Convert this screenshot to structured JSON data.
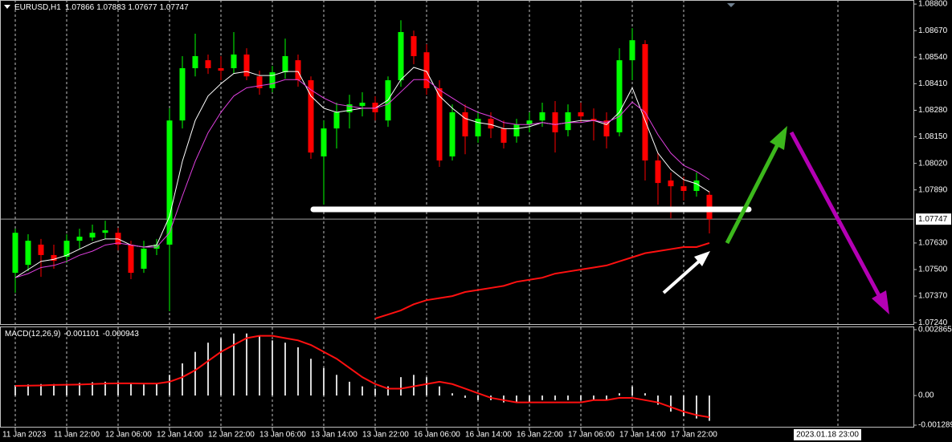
{
  "chart_data": {
    "type": "candlestick",
    "title": "EURUSD,H1",
    "readout": [
      1.07866,
      1.07883,
      1.07677,
      1.07747
    ],
    "categories": [
      "11 Jan 2023",
      null,
      null,
      null,
      "11 Jan 22:00",
      null,
      null,
      null,
      "12 Jan 06:00",
      null,
      null,
      null,
      "12 Jan 14:00",
      null,
      null,
      null,
      "12 Jan 22:00",
      null,
      null,
      null,
      "13 Jan 06:00",
      null,
      null,
      null,
      "13 Jan 14:00",
      null,
      null,
      null,
      "13 Jan 22:00",
      null,
      null,
      null,
      "16 Jan 06:00",
      null,
      null,
      null,
      "16 Jan 14:00",
      null,
      null,
      null,
      "16 Jan 22:00",
      null,
      null,
      null,
      "17 Jan 06:00",
      null,
      null,
      null,
      "17 Jan 14:00",
      null,
      null,
      null,
      "17 Jan 22:00",
      null,
      null
    ],
    "candles": [
      [
        1.07484,
        1.077,
        1.07386,
        1.0768
      ],
      [
        1.07523,
        1.07673,
        1.07492,
        1.07641
      ],
      [
        1.07622,
        1.0765,
        1.07464,
        1.07571
      ],
      [
        1.07571,
        1.07622,
        1.07504,
        1.07543
      ],
      [
        1.07563,
        1.07673,
        1.07531,
        1.07641
      ],
      [
        1.07641,
        1.077,
        1.07602,
        1.07661
      ],
      [
        1.07657,
        1.0772,
        1.07641,
        1.0768
      ],
      [
        1.0768,
        1.07739,
        1.0765,
        1.07692
      ],
      [
        1.0768,
        1.07704,
        1.07594,
        1.07622
      ],
      [
        1.07622,
        1.07641,
        1.07453,
        1.07484
      ],
      [
        1.07504,
        1.07641,
        1.07484,
        1.07602
      ],
      [
        1.07602,
        1.0765,
        1.07571,
        1.07622
      ],
      [
        1.07622,
        1.08289,
        1.07296,
        1.0823
      ],
      [
        1.0823,
        1.08545,
        1.08191,
        1.08486
      ],
      [
        1.08486,
        1.08655,
        1.08446,
        1.08545
      ],
      [
        1.08525,
        1.08553,
        1.08458,
        1.08486
      ],
      [
        1.08486,
        1.08545,
        1.08427,
        1.08474
      ],
      [
        1.08486,
        1.08663,
        1.08458,
        1.08553
      ],
      [
        1.08553,
        1.08584,
        1.08427,
        1.08446
      ],
      [
        1.08446,
        1.08474,
        1.08356,
        1.08388
      ],
      [
        1.08388,
        1.08497,
        1.08368,
        1.08466
      ],
      [
        1.08466,
        1.08631,
        1.08435,
        1.08545
      ],
      [
        1.08525,
        1.08553,
        1.08395,
        1.08427
      ],
      [
        1.08427,
        1.08446,
        1.08042,
        1.08073
      ],
      [
        1.08054,
        1.0823,
        1.07818,
        1.08191
      ],
      [
        1.08191,
        1.08317,
        1.08093,
        1.0827
      ],
      [
        1.0827,
        1.08356,
        1.08191,
        1.08309
      ],
      [
        1.08301,
        1.08368,
        1.0825,
        1.08317
      ],
      [
        1.08317,
        1.08348,
        1.0823,
        1.0827
      ],
      [
        1.0823,
        1.08446,
        1.08199,
        1.08427
      ],
      [
        1.08427,
        1.08721,
        1.08395,
        1.08663
      ],
      [
        1.08643,
        1.0867,
        1.08505,
        1.08545
      ],
      [
        1.08564,
        1.08604,
        1.08356,
        1.08388
      ],
      [
        1.08388,
        1.08427,
        1.08003,
        1.08034
      ],
      [
        1.08054,
        1.08309,
        1.08034,
        1.0827
      ],
      [
        1.0827,
        1.08309,
        1.08065,
        1.08152
      ],
      [
        1.08152,
        1.08278,
        1.08121,
        1.08238
      ],
      [
        1.08238,
        1.0827,
        1.08144,
        1.08191
      ],
      [
        1.08191,
        1.0823,
        1.08093,
        1.08121
      ],
      [
        1.08152,
        1.08238,
        1.08121,
        1.08211
      ],
      [
        1.08211,
        1.0827,
        1.08172,
        1.0823
      ],
      [
        1.0823,
        1.08317,
        1.08199,
        1.0827
      ],
      [
        1.0827,
        1.08325,
        1.08073,
        1.08172
      ],
      [
        1.08183,
        1.08309,
        1.08152,
        1.0827
      ],
      [
        1.0827,
        1.08317,
        1.08222,
        1.0825
      ],
      [
        1.08238,
        1.08289,
        1.08132,
        1.0823
      ],
      [
        1.0823,
        1.0827,
        1.08093,
        1.08152
      ],
      [
        1.08172,
        1.08584,
        1.08152,
        1.08525
      ],
      [
        1.08525,
        1.08682,
        1.08427,
        1.08623
      ],
      [
        1.08604,
        1.08623,
        1.07936,
        1.08034
      ],
      [
        1.08034,
        1.08073,
        1.07818,
        1.07924
      ],
      [
        1.07936,
        1.07975,
        1.07751,
        1.07908
      ],
      [
        1.07908,
        1.07955,
        1.07838,
        1.07885
      ],
      [
        1.07885,
        1.07975,
        1.07857,
        1.07936
      ],
      [
        1.07866,
        1.07883,
        1.07677,
        1.07747
      ]
    ],
    "up_color": "#00ff00",
    "down_color": "#ff0000",
    "lines": [
      {
        "color": "#ffffff",
        "values": [
          1.0746,
          1.075,
          1.0754,
          1.0755,
          1.0757,
          1.076,
          1.0763,
          1.0765,
          1.0765,
          1.0762,
          1.0761,
          1.0762,
          1.0776,
          1.0803,
          1.0823,
          1.0835,
          1.0841,
          1.0846,
          1.0847,
          1.0845,
          1.0845,
          1.0847,
          1.0847,
          1.0835,
          1.0829,
          1.0827,
          1.0828,
          1.0829,
          1.0829,
          1.0833,
          1.0843,
          1.0849,
          1.0847,
          1.0835,
          1.0829,
          1.0824,
          1.0822,
          1.0821,
          1.0819,
          1.0819,
          1.082,
          1.0822,
          1.0821,
          1.0822,
          1.0823,
          1.0823,
          1.0821,
          1.0827,
          1.0839,
          1.0823,
          1.0807,
          1.0799,
          1.0794,
          1.0792,
          1.0788
        ]
      },
      {
        "color": "#e040e0",
        "values": [
          1.0746,
          1.0748,
          1.0751,
          1.0752,
          1.0754,
          1.0757,
          1.0759,
          1.0762,
          1.0763,
          1.0762,
          1.0761,
          1.0761,
          1.0768,
          1.0786,
          1.0803,
          1.0817,
          1.0827,
          1.0835,
          1.0839,
          1.084,
          1.0841,
          1.0843,
          1.0843,
          1.0838,
          1.0834,
          1.0831,
          1.083,
          1.0829,
          1.0829,
          1.0831,
          1.0837,
          1.0843,
          1.0843,
          1.0838,
          1.0834,
          1.083,
          1.0827,
          1.0825,
          1.0822,
          1.0821,
          1.0821,
          1.0822,
          1.0821,
          1.0822,
          1.0822,
          1.0823,
          1.0822,
          1.0825,
          1.0832,
          1.0827,
          1.0816,
          1.0807,
          1.0801,
          1.0798,
          1.0794
        ]
      },
      {
        "color": "#ff1010",
        "values": [
          null,
          null,
          null,
          null,
          null,
          null,
          null,
          null,
          null,
          null,
          null,
          null,
          null,
          null,
          null,
          null,
          null,
          null,
          null,
          null,
          null,
          null,
          null,
          null,
          null,
          null,
          null,
          null,
          1.0726,
          1.0728,
          1.073,
          1.0733,
          1.0735,
          1.0736,
          1.0737,
          1.0739,
          1.074,
          1.0741,
          1.0742,
          1.0744,
          1.0745,
          1.0746,
          1.0748,
          1.0749,
          1.075,
          1.0751,
          1.0752,
          1.0754,
          1.0756,
          1.0758,
          1.0759,
          1.076,
          1.0761,
          1.0761,
          1.0763
        ]
      }
    ],
    "ylim": [
      1.07229,
      1.0882
    ],
    "yticks": [
      {
        "value": 1.088,
        "label": "1.08800"
      },
      {
        "value": 1.0867,
        "label": "1.08670"
      },
      {
        "value": 1.0854,
        "label": "1.08540"
      },
      {
        "value": 1.0841,
        "label": "1.08410"
      },
      {
        "value": 1.0828,
        "label": "1.08280"
      },
      {
        "value": 1.0815,
        "label": "1.08150"
      },
      {
        "value": 1.0802,
        "label": "1.08020"
      },
      {
        "value": 1.0789,
        "label": "1.07890"
      },
      {
        "value": 1.0763,
        "label": "1.07630"
      },
      {
        "value": 1.075,
        "label": "1.07500"
      },
      {
        "value": 1.0737,
        "label": "1.07370"
      },
      {
        "value": 1.0724,
        "label": "1.07240"
      }
    ],
    "bid": 1.07747,
    "cursor_time": "2023.01.18 23:00",
    "subchart": {
      "type": "macd",
      "title": "MACD(12,26,9)",
      "readout": [
        -0.001101,
        -0.000943
      ],
      "histogram": [
        0.00045,
        0.00048,
        0.0005,
        0.0005,
        0.00052,
        0.00055,
        0.00058,
        0.0006,
        0.00058,
        0.0005,
        0.00048,
        0.0005,
        0.0009,
        0.0014,
        0.0019,
        0.0023,
        0.0025,
        0.0027,
        0.0027,
        0.0026,
        0.0024,
        0.0023,
        0.0021,
        0.0016,
        0.0012,
        0.0009,
        0.0006,
        0.0004,
        0.0003,
        0.0004,
        0.0008,
        0.0009,
        0.0008,
        0.0004,
        0.0001,
        -0.0001,
        -0.0002,
        -0.0002,
        -0.0003,
        -0.0003,
        -0.0003,
        -0.0002,
        -0.0002,
        -0.0002,
        -0.0002,
        -0.0002,
        -0.0002,
        0.0001,
        0.0004,
        0.0001,
        -0.0004,
        -0.0007,
        -0.0009,
        -0.001,
        -0.001101
      ],
      "signal": [
        0.00042,
        0.00043,
        0.00044,
        0.00046,
        0.00047,
        0.00048,
        0.0005,
        0.00052,
        0.00053,
        0.00053,
        0.00052,
        0.00052,
        0.0006,
        0.0008,
        0.0011,
        0.0015,
        0.0019,
        0.0022,
        0.0025,
        0.0026,
        0.0026,
        0.0025,
        0.0024,
        0.0022,
        0.0019,
        0.0016,
        0.0012,
        0.0008,
        0.0005,
        0.0003,
        0.0003,
        0.0004,
        0.0005,
        0.0006,
        0.0005,
        0.0003,
        0.0001,
        -0.0001,
        -0.0002,
        -0.0003,
        -0.0003,
        -0.0003,
        -0.0003,
        -0.0003,
        -0.0003,
        -0.0002,
        -0.0002,
        -0.0001,
        -0.0001,
        -0.0002,
        -0.0003,
        -0.0005,
        -0.0007,
        -0.00085,
        -0.000943
      ],
      "hist_color": "#d8d8d8",
      "signal_color": "#ff1010",
      "ylim": [
        -0.001289,
        0.002865
      ],
      "yticks": [
        0.002865,
        {
          "value": 0,
          "label": "0.00"
        },
        -0.001289
      ]
    }
  }
}
